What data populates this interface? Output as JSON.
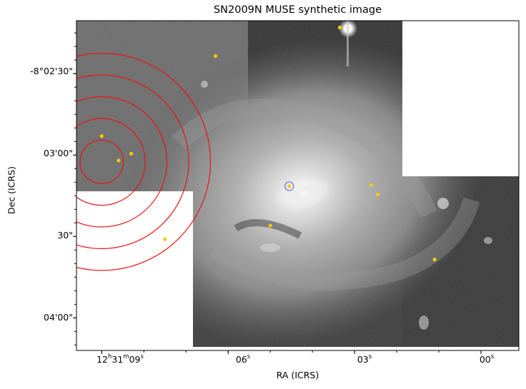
{
  "chart_data": {
    "type": "image",
    "title": "SN2009N MUSE synthetic image",
    "xlabel": "RA (ICRS)",
    "ylabel": "Dec (ICRS)",
    "xticks": [
      {
        "label": "12h31m09s",
        "parts": [
          "12",
          "h",
          "31",
          "m",
          "09",
          "s"
        ],
        "ra_s": 9
      },
      {
        "label": "06s",
        "parts": [
          "06",
          "s"
        ],
        "ra_s": 6
      },
      {
        "label": "03s",
        "parts": [
          "03",
          "s"
        ],
        "ra_s": 3
      },
      {
        "label": "00s",
        "parts": [
          "00",
          "s"
        ],
        "ra_s": 0
      }
    ],
    "yticks": [
      {
        "label": "-8°02'30\"",
        "dec_arcsec_offset": 150
      },
      {
        "label": "03'00\"",
        "dec_arcsec_offset": 180
      },
      {
        "label": "30\"",
        "dec_arcsec_offset": 210
      },
      {
        "label": "04'00\"",
        "dec_arcsec_offset": 240
      }
    ],
    "ra_range_s": [
      9.6,
      -0.9
    ],
    "dec_range_arcsec_offset": [
      130.5,
      252
    ],
    "colormap": "gray",
    "annotations": {
      "concentric_circles": {
        "color": "#ee1111",
        "center_ra_s": 9.0,
        "center_dec_arcsec_offset": 182.5,
        "radii_arcsec": [
          8,
          16,
          24,
          32,
          40
        ]
      },
      "sn_marker": {
        "color": "#6a6af0",
        "ra_s": 4.55,
        "dec_arcsec_offset": 191.5
      },
      "sources": {
        "color": "#f2cc00",
        "points": [
          {
            "ra_s": 3.35,
            "dec_arcsec_offset": 133
          },
          {
            "ra_s": 6.3,
            "dec_arcsec_offset": 143.5
          },
          {
            "ra_s": 9.0,
            "dec_arcsec_offset": 173
          },
          {
            "ra_s": 8.3,
            "dec_arcsec_offset": 179.5
          },
          {
            "ra_s": 8.6,
            "dec_arcsec_offset": 182
          },
          {
            "ra_s": 4.55,
            "dec_arcsec_offset": 191.5
          },
          {
            "ra_s": 2.6,
            "dec_arcsec_offset": 191
          },
          {
            "ra_s": 2.45,
            "dec_arcsec_offset": 194.5
          },
          {
            "ra_s": 5.0,
            "dec_arcsec_offset": 206
          },
          {
            "ra_s": 7.5,
            "dec_arcsec_offset": 211
          },
          {
            "ra_s": 1.1,
            "dec_arcsec_offset": 218.5
          }
        ]
      }
    }
  }
}
